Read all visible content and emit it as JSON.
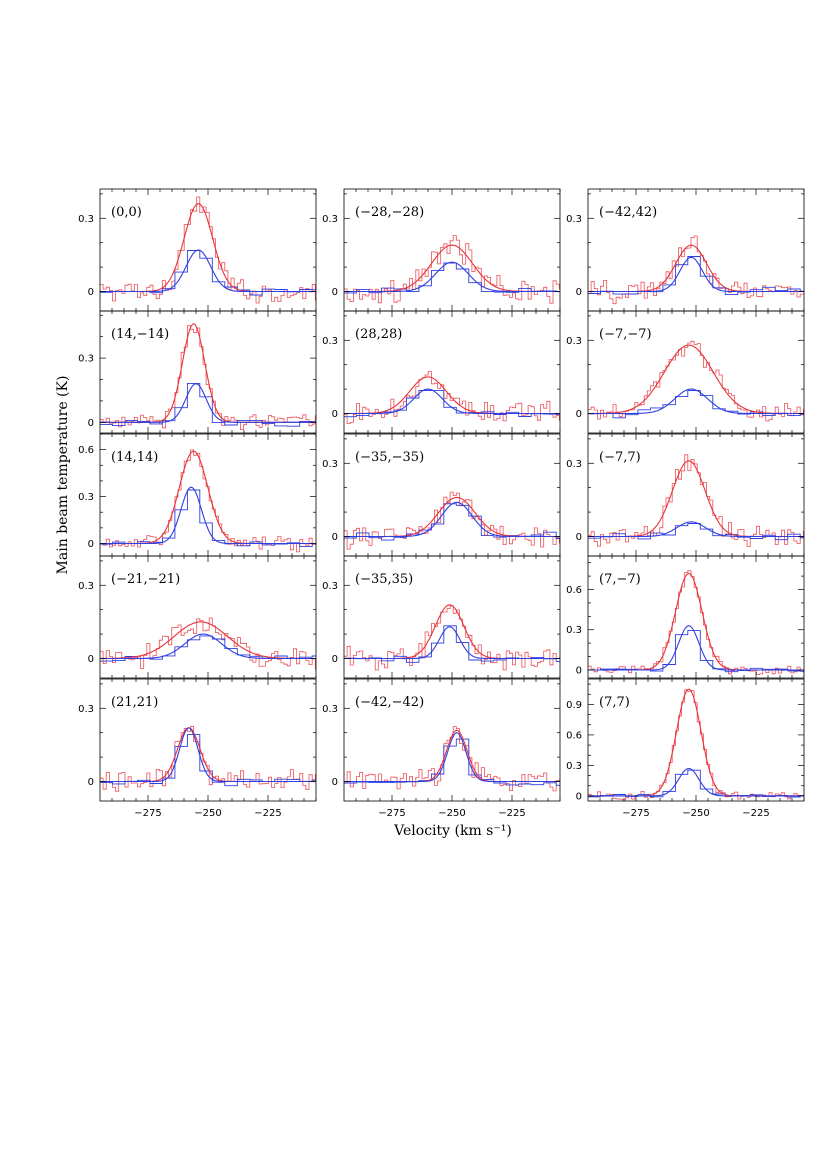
{
  "figure": {
    "xlabel": "Velocity (km s⁻¹)",
    "ylabel": "Main beam temperature (K)"
  },
  "colors": {
    "series_red": "#e8333a",
    "series_blue": "#2f3fe0",
    "frame": "#000000"
  },
  "chart_data": {
    "type": "line",
    "x_axis": {
      "range": [
        -295,
        -205
      ],
      "ticks": [
        -275,
        -250,
        -225
      ],
      "tick_labels": [
        "−275",
        "−250",
        "−225"
      ]
    },
    "series_legend": [
      {
        "color": "red",
        "style": "histogram spectrum with Gaussian fit"
      },
      {
        "color": "blue",
        "style": "histogram spectrum (coarser) with Gaussian fit"
      }
    ],
    "panels": [
      {
        "label": "(0,0)",
        "ylim": [
          -0.08,
          0.42
        ],
        "yticks": [
          0,
          0.3
        ],
        "ytick_labels": [
          "0",
          "0.3"
        ],
        "red": {
          "amp": 0.36,
          "center": -254,
          "fwhm": 14,
          "noise": 0.035
        },
        "blue": {
          "amp": 0.17,
          "center": -254,
          "fwhm": 12,
          "noise": 0.012
        }
      },
      {
        "label": "(−28,−28)",
        "ylim": [
          -0.08,
          0.42
        ],
        "yticks": [
          0,
          0.3
        ],
        "ytick_labels": [
          "0",
          "0.3"
        ],
        "red": {
          "amp": 0.19,
          "center": -250,
          "fwhm": 20,
          "noise": 0.035
        },
        "blue": {
          "amp": 0.12,
          "center": -250,
          "fwhm": 16,
          "noise": 0.012
        }
      },
      {
        "label": "(−42,42)",
        "ylim": [
          -0.08,
          0.42
        ],
        "yticks": [
          0,
          0.3
        ],
        "ytick_labels": [
          "0",
          "0.3"
        ],
        "red": {
          "amp": 0.19,
          "center": -252,
          "fwhm": 15,
          "noise": 0.035
        },
        "blue": {
          "amp": 0.14,
          "center": -252,
          "fwhm": 11,
          "noise": 0.012
        }
      },
      {
        "label": "(14,−14)",
        "ylim": [
          -0.05,
          0.52
        ],
        "yticks": [
          0,
          0.3
        ],
        "ytick_labels": [
          "0",
          "0.3"
        ],
        "red": {
          "amp": 0.46,
          "center": -256,
          "fwhm": 11,
          "noise": 0.03
        },
        "blue": {
          "amp": 0.18,
          "center": -255,
          "fwhm": 10,
          "noise": 0.012
        }
      },
      {
        "label": "(28,28)",
        "ylim": [
          -0.08,
          0.42
        ],
        "yticks": [
          0,
          0.3
        ],
        "ytick_labels": [
          "0",
          "0.3"
        ],
        "red": {
          "amp": 0.15,
          "center": -260,
          "fwhm": 18,
          "noise": 0.035
        },
        "blue": {
          "amp": 0.1,
          "center": -260,
          "fwhm": 14,
          "noise": 0.012
        }
      },
      {
        "label": "(−7,−7)",
        "ylim": [
          -0.08,
          0.42
        ],
        "yticks": [
          0,
          0.3
        ],
        "ytick_labels": [
          "0",
          "0.3"
        ],
        "red": {
          "amp": 0.28,
          "center": -253,
          "fwhm": 24,
          "noise": 0.03
        },
        "blue": {
          "amp": 0.1,
          "center": -252,
          "fwhm": 16,
          "noise": 0.012
        }
      },
      {
        "label": "(14,14)",
        "ylim": [
          -0.08,
          0.7
        ],
        "yticks": [
          0,
          0.3,
          0.6
        ],
        "ytick_labels": [
          "0",
          "0.3",
          "0.6"
        ],
        "red": {
          "amp": 0.59,
          "center": -256,
          "fwhm": 14,
          "noise": 0.035
        },
        "blue": {
          "amp": 0.36,
          "center": -257,
          "fwhm": 10,
          "noise": 0.015
        }
      },
      {
        "label": "(−35,−35)",
        "ylim": [
          -0.08,
          0.42
        ],
        "yticks": [
          0,
          0.3
        ],
        "ytick_labels": [
          "0",
          "0.3"
        ],
        "red": {
          "amp": 0.16,
          "center": -248,
          "fwhm": 18,
          "noise": 0.035
        },
        "blue": {
          "amp": 0.14,
          "center": -248,
          "fwhm": 15,
          "noise": 0.012
        }
      },
      {
        "label": "(−7,7)",
        "ylim": [
          -0.08,
          0.42
        ],
        "yticks": [
          0,
          0.3
        ],
        "ytick_labels": [
          "0",
          "0.3"
        ],
        "red": {
          "amp": 0.31,
          "center": -253,
          "fwhm": 16,
          "noise": 0.035
        },
        "blue": {
          "amp": 0.06,
          "center": -252,
          "fwhm": 14,
          "noise": 0.01
        }
      },
      {
        "label": "(−21,−21)",
        "ylim": [
          -0.08,
          0.42
        ],
        "yticks": [
          0,
          0.3
        ],
        "ytick_labels": [
          "0",
          "0.3"
        ],
        "red": {
          "amp": 0.15,
          "center": -253,
          "fwhm": 26,
          "noise": 0.035
        },
        "blue": {
          "amp": 0.1,
          "center": -252,
          "fwhm": 18,
          "noise": 0.012
        }
      },
      {
        "label": "(−35,35)",
        "ylim": [
          -0.08,
          0.42
        ],
        "yticks": [
          0,
          0.3
        ],
        "ytick_labels": [
          "0",
          "0.3"
        ],
        "red": {
          "amp": 0.22,
          "center": -251,
          "fwhm": 14,
          "noise": 0.035
        },
        "blue": {
          "amp": 0.13,
          "center": -251,
          "fwhm": 10,
          "noise": 0.012
        }
      },
      {
        "label": "(7,−7)",
        "ylim": [
          -0.06,
          0.85
        ],
        "yticks": [
          0,
          0.3,
          0.6
        ],
        "ytick_labels": [
          "0",
          "0.3",
          "0.6"
        ],
        "red": {
          "amp": 0.72,
          "center": -253,
          "fwhm": 13,
          "noise": 0.03
        },
        "blue": {
          "amp": 0.33,
          "center": -253,
          "fwhm": 10,
          "noise": 0.012
        }
      },
      {
        "label": "(21,21)",
        "ylim": [
          -0.08,
          0.42
        ],
        "yticks": [
          0,
          0.3
        ],
        "ytick_labels": [
          "0",
          "0.3"
        ],
        "red": {
          "amp": 0.22,
          "center": -258,
          "fwhm": 11,
          "noise": 0.035
        },
        "blue": {
          "amp": 0.22,
          "center": -258,
          "fwhm": 9,
          "noise": 0.012
        }
      },
      {
        "label": "(−42,−42)",
        "ylim": [
          -0.08,
          0.42
        ],
        "yticks": [
          0,
          0.3
        ],
        "ytick_labels": [
          "0",
          "0.3"
        ],
        "red": {
          "amp": 0.21,
          "center": -248,
          "fwhm": 10,
          "noise": 0.035
        },
        "blue": {
          "amp": 0.2,
          "center": -248,
          "fwhm": 9,
          "noise": 0.012
        }
      },
      {
        "label": "(7,7)",
        "ylim": [
          -0.05,
          1.15
        ],
        "yticks": [
          0,
          0.3,
          0.6,
          0.9
        ],
        "ytick_labels": [
          "0",
          "0.3",
          "0.6",
          "0.9"
        ],
        "red": {
          "amp": 1.05,
          "center": -253,
          "fwhm": 12,
          "noise": 0.03
        },
        "blue": {
          "amp": 0.27,
          "center": -253,
          "fwhm": 10,
          "noise": 0.012
        }
      }
    ]
  }
}
